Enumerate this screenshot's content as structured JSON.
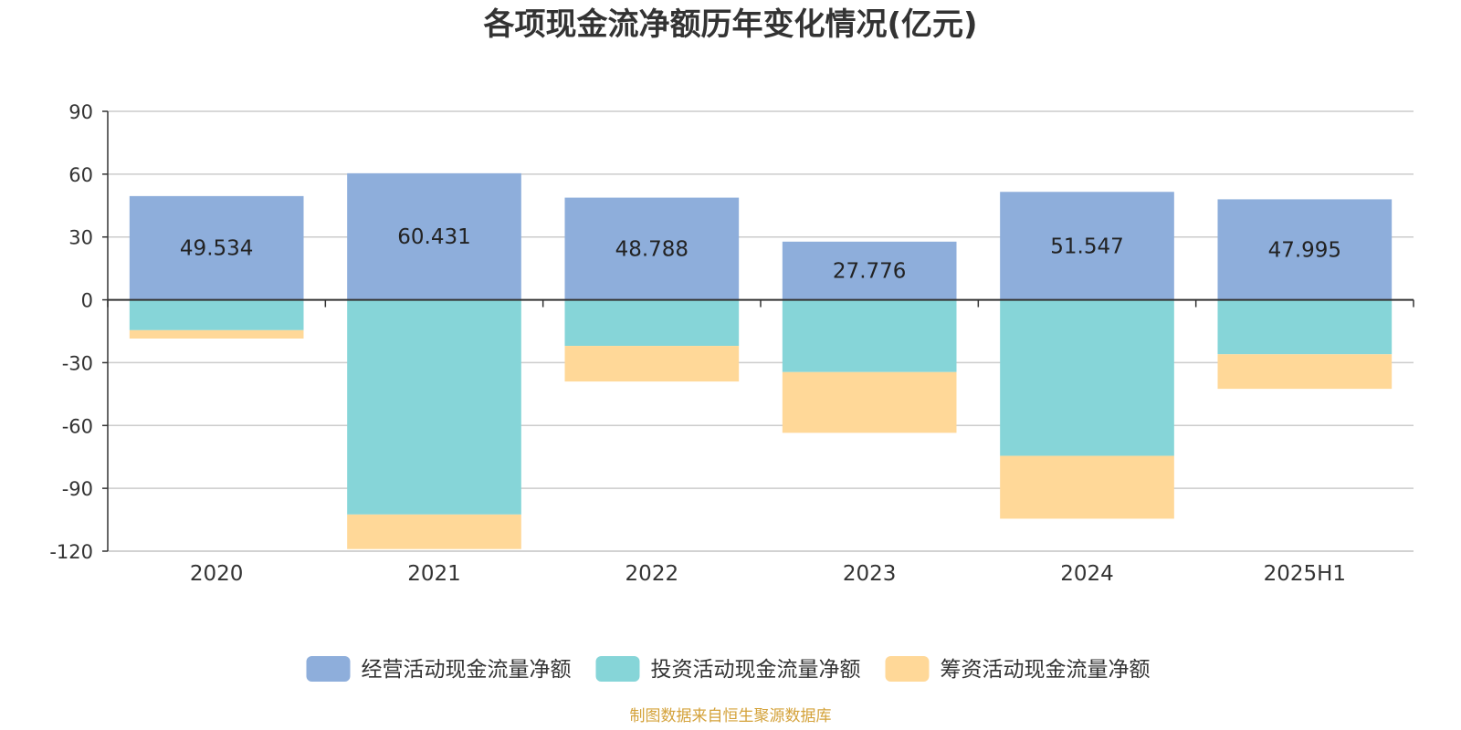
{
  "chart_data": {
    "type": "bar",
    "stacked": true,
    "title": "各项现金流净额历年变化情况(亿元)",
    "xlabel": "",
    "ylabel": "",
    "categories": [
      "2020",
      "2021",
      "2022",
      "2023",
      "2024",
      "2025H1"
    ],
    "ylim": [
      -120,
      90
    ],
    "yticks": [
      90,
      60,
      30,
      0,
      -30,
      -60,
      -90,
      -120
    ],
    "grid": true,
    "legend_position": "bottom",
    "series": [
      {
        "name": "经营活动现金流量净额",
        "color": "#8eaedb",
        "values": [
          49.534,
          60.431,
          48.788,
          27.776,
          51.547,
          47.995
        ],
        "show_labels": true
      },
      {
        "name": "投资活动现金流量净额",
        "color": "#86d5d8",
        "values": [
          -14.5,
          -102.5,
          -22.0,
          -34.5,
          -74.5,
          -26.0
        ],
        "show_labels": false
      },
      {
        "name": "筹资活动现金流量净额",
        "color": "#ffd898",
        "values": [
          -4.0,
          -16.5,
          -17.0,
          -29.0,
          -30.0,
          -16.5
        ],
        "show_labels": false
      }
    ]
  },
  "source": {
    "text": "制图数据来自恒生聚源数据库",
    "color": "#d4a23a"
  }
}
